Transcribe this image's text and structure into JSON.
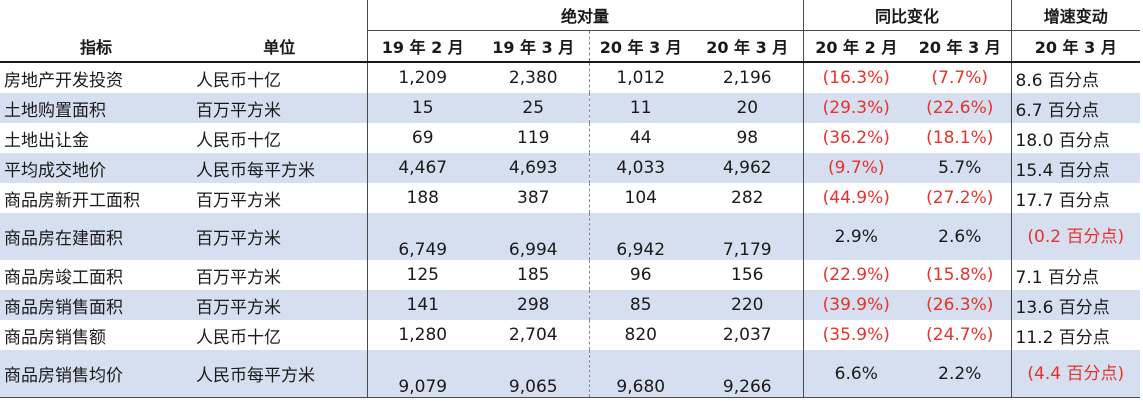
{
  "header": {
    "group_abs": "绝对量",
    "group_yoy": "同比变化",
    "group_speed": "增速变动",
    "col_indicator": "指标",
    "col_unit": "单位",
    "col_19feb": "19 年 2 月",
    "col_19mar": "19 年 3 月",
    "col_20mar_a": "20 年 3 月",
    "col_20mar_b": "20 年 3 月",
    "col_yoy_20feb": "20 年 2 月",
    "col_yoy_20mar": "20 年 3 月",
    "col_speed_20mar": "20 年 3 月"
  },
  "rows": [
    {
      "indicator": "房地产开发投资",
      "unit": "人民币十亿",
      "v1": "1,209",
      "v2": "2,380",
      "v3": "1,012",
      "v4": "2,196",
      "y1": "(16.3%)",
      "y2": "(7.7%)",
      "speed": "8.6 百分点"
    },
    {
      "indicator": "土地购置面积",
      "unit": "百万平方米",
      "v1": "15",
      "v2": "25",
      "v3": "11",
      "v4": "20",
      "y1": "(29.3%)",
      "y2": "(22.6%)",
      "speed": "6.7 百分点"
    },
    {
      "indicator": "土地出让金",
      "unit": "人民币十亿",
      "v1": "69",
      "v2": "119",
      "v3": "44",
      "v4": "98",
      "y1": "(36.2%)",
      "y2": "(18.1%)",
      "speed": "18.0 百分点"
    },
    {
      "indicator": "平均成交地价",
      "unit": "人民币每平方米",
      "v1": "4,467",
      "v2": "4,693",
      "v3": "4,033",
      "v4": "4,962",
      "y1": "(9.7%)",
      "y2": "5.7%",
      "speed": "15.4 百分点"
    },
    {
      "indicator": "商品房新开工面积",
      "unit": "百万平方米",
      "v1": "188",
      "v2": "387",
      "v3": "104",
      "v4": "282",
      "y1": "(44.9%)",
      "y2": "(27.2%)",
      "speed": "17.7 百分点"
    },
    {
      "indicator": "商品房在建面积",
      "unit": "百万平方米",
      "v1": "6,749",
      "v2": "6,994",
      "v3": "6,942",
      "v4": "7,179",
      "y1": "2.9%",
      "y2": "2.6%",
      "speed": "(0.2 百分点)"
    },
    {
      "indicator": "商品房竣工面积",
      "unit": "百万平方米",
      "v1": "125",
      "v2": "185",
      "v3": "96",
      "v4": "156",
      "y1": "(22.9%)",
      "y2": "(15.8%)",
      "speed": "7.1 百分点"
    },
    {
      "indicator": "商品房销售面积",
      "unit": "百万平方米",
      "v1": "141",
      "v2": "298",
      "v3": "85",
      "v4": "220",
      "y1": "(39.9%)",
      "y2": "(26.3%)",
      "speed": "13.6 百分点"
    },
    {
      "indicator": "商品房销售额",
      "unit": "人民币十亿",
      "v1": "1,280",
      "v2": "2,704",
      "v3": "820",
      "v4": "2,037",
      "y1": "(35.9%)",
      "y2": "(24.7%)",
      "speed": "11.2 百分点"
    },
    {
      "indicator": "商品房销售均价",
      "unit": "人民币每平方米",
      "v1": "9,079",
      "v2": "9,065",
      "v3": "9,680",
      "v4": "9,266",
      "y1": "6.6%",
      "y2": "2.2%",
      "speed": "(4.4 百分点)"
    }
  ],
  "colors": {
    "negative": "#e8312a",
    "band": "#d6dfef"
  }
}
